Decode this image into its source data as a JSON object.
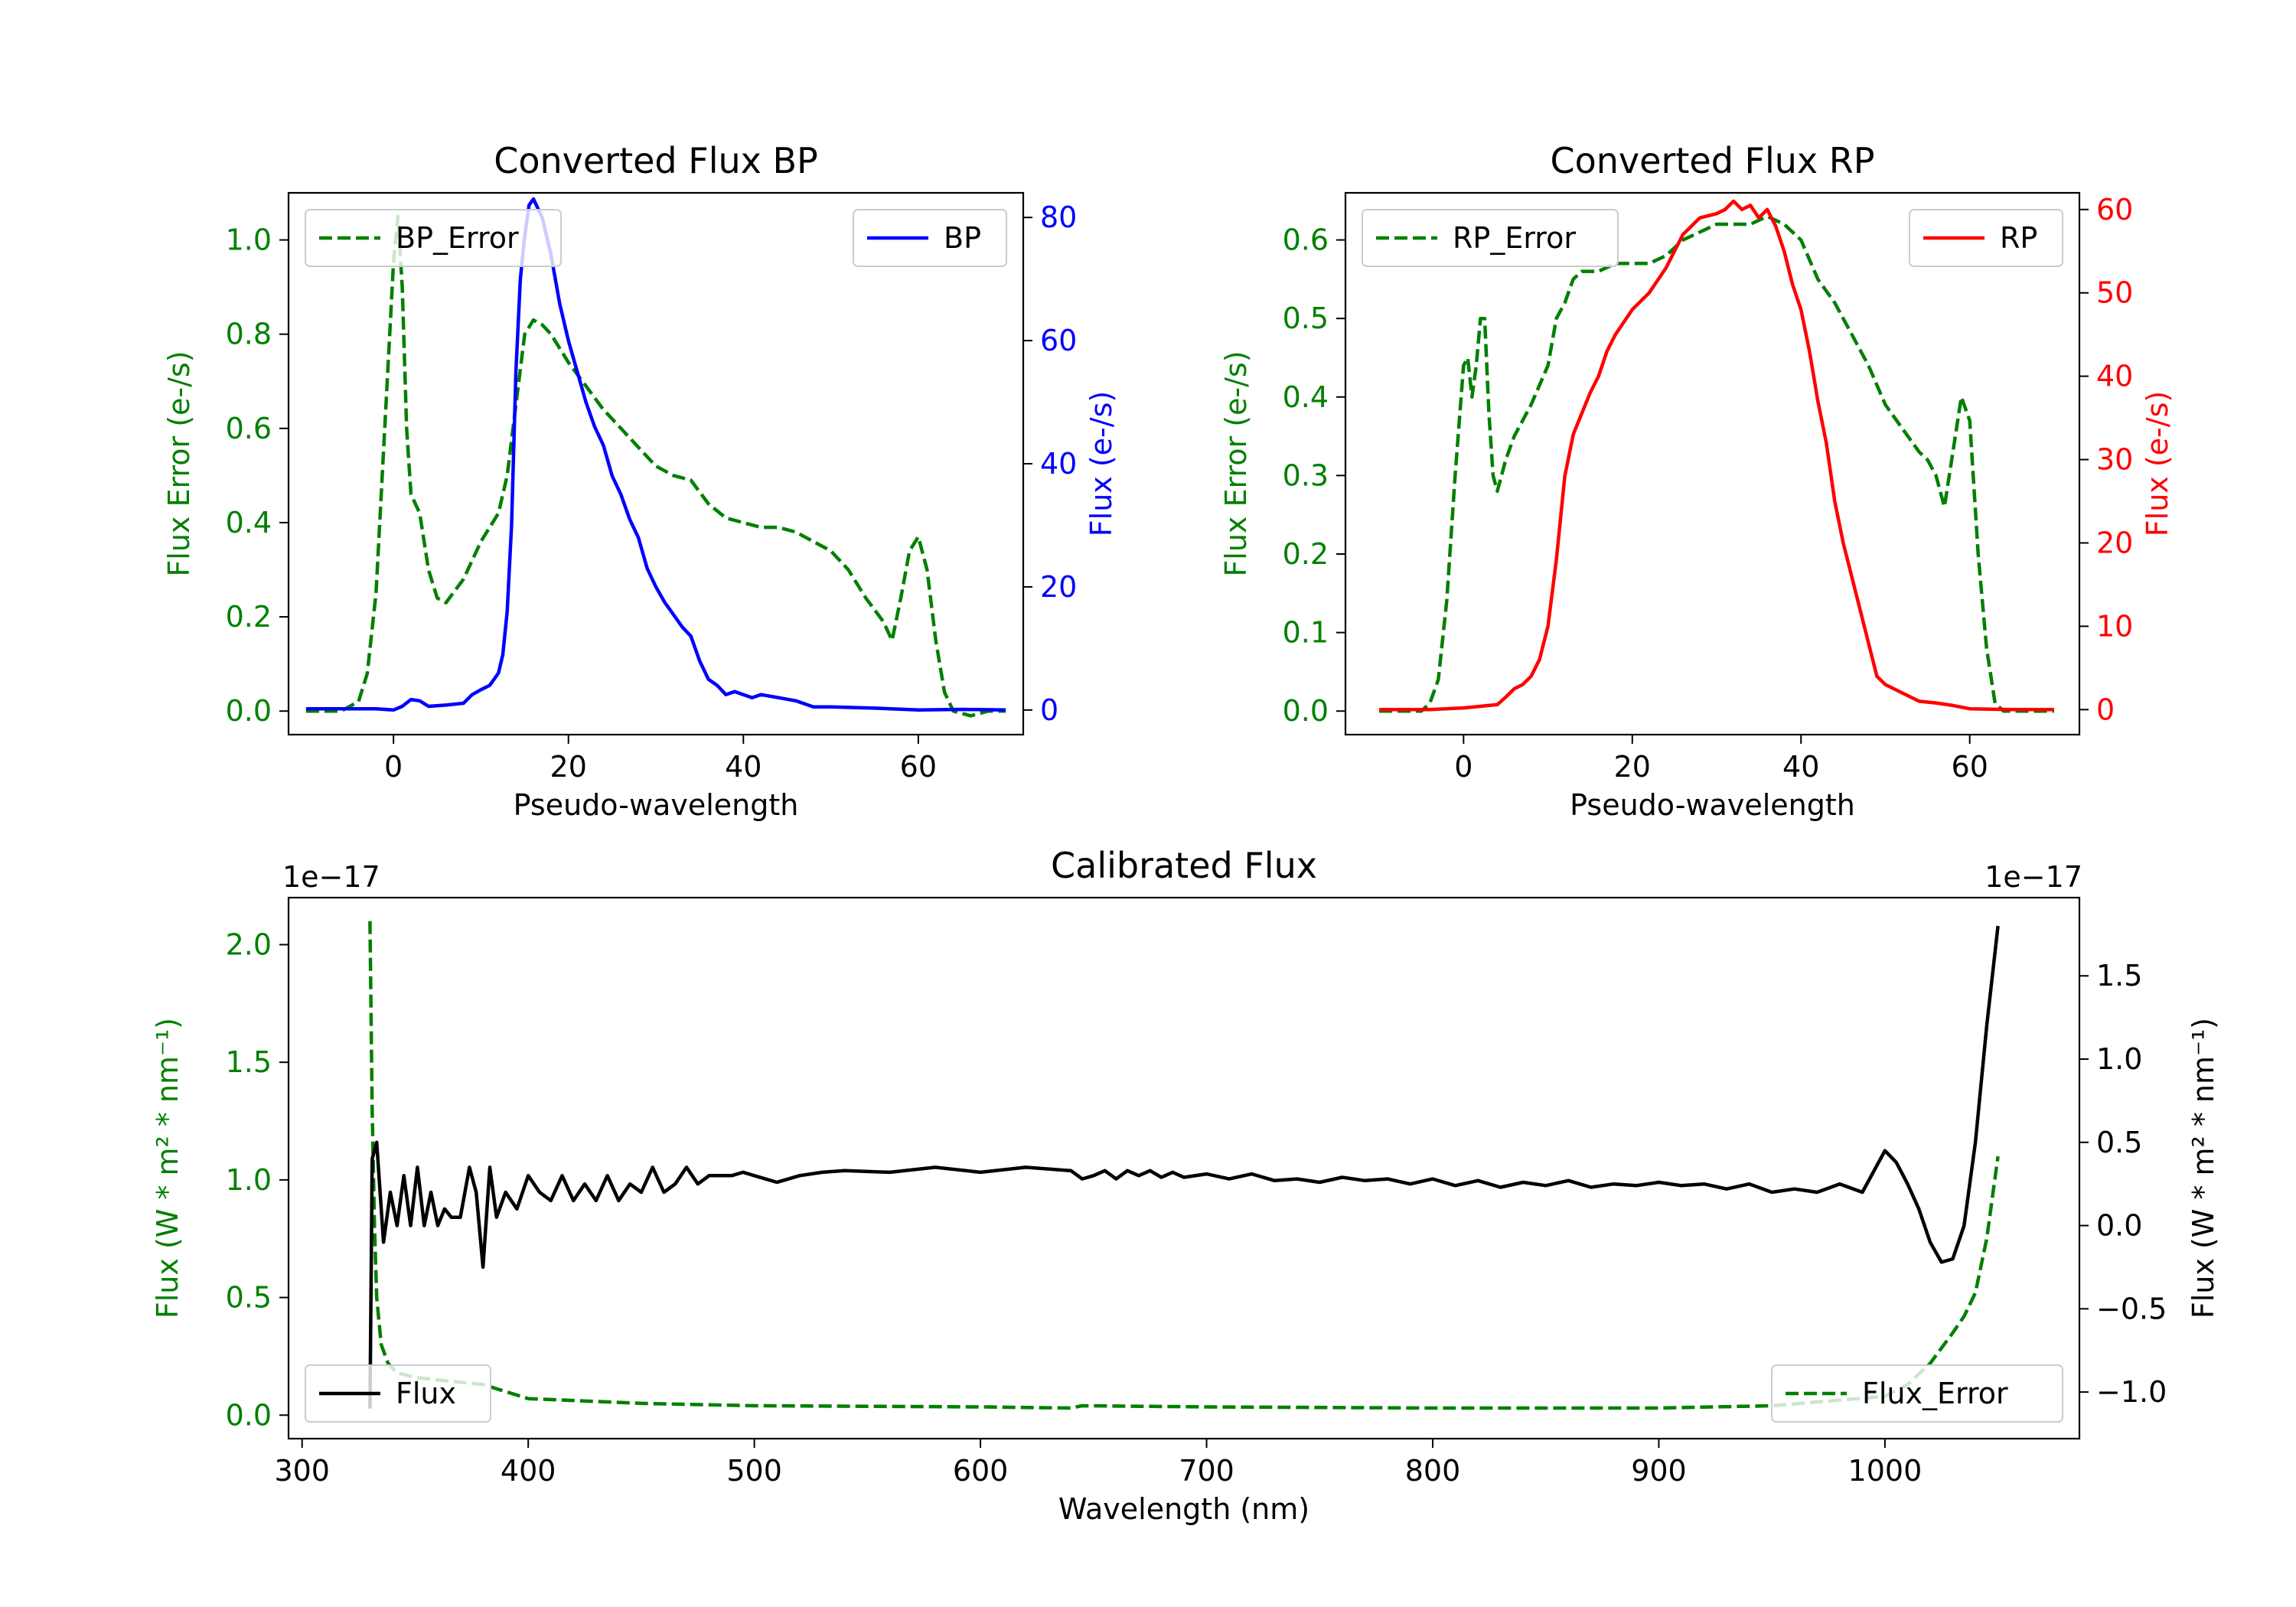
{
  "figure": {
    "background": "#ffffff"
  },
  "chart_data": [
    {
      "id": "bp",
      "type": "line",
      "title": "Converted Flux BP",
      "xlabel": "Pseudo-wavelength",
      "ylabel_left": "Flux Error (e-/s)",
      "ylabel_right": "Flux (e-/s)",
      "xlim": [
        -12,
        72
      ],
      "ylim_left": [
        -0.05,
        1.1
      ],
      "ylim_right": [
        -4,
        84
      ],
      "xticks": [
        0,
        20,
        40,
        60
      ],
      "yticks_left": [
        0.0,
        0.2,
        0.4,
        0.6,
        0.8,
        1.0
      ],
      "yticks_right": [
        0,
        20,
        40,
        60,
        80
      ],
      "left_color": "#008000",
      "right_color": "#0000ff",
      "legend_left": {
        "label": "BP_Error",
        "position": "upper left"
      },
      "legend_right": {
        "label": "BP",
        "position": "upper right"
      },
      "series": [
        {
          "name": "BP_Error",
          "axis": "left",
          "style": "dashed",
          "color": "#008000",
          "x": [
            -10,
            -6,
            -4,
            -3,
            -2,
            -1,
            0,
            0.5,
            1,
            1.5,
            2,
            3,
            4,
            5,
            6,
            8,
            10,
            12,
            13,
            14,
            15,
            16,
            17,
            18,
            20,
            22,
            24,
            26,
            28,
            30,
            32,
            34,
            36,
            38,
            40,
            42,
            44,
            46,
            48,
            50,
            52,
            54,
            56,
            57,
            58,
            59,
            60,
            61,
            62,
            63,
            64,
            66,
            68,
            70
          ],
          "values": [
            0.0,
            0.0,
            0.02,
            0.08,
            0.25,
            0.6,
            0.95,
            1.05,
            0.9,
            0.6,
            0.46,
            0.42,
            0.3,
            0.24,
            0.23,
            0.28,
            0.36,
            0.42,
            0.5,
            0.65,
            0.8,
            0.83,
            0.82,
            0.8,
            0.74,
            0.69,
            0.64,
            0.6,
            0.56,
            0.52,
            0.5,
            0.49,
            0.44,
            0.41,
            0.4,
            0.39,
            0.39,
            0.38,
            0.36,
            0.34,
            0.3,
            0.24,
            0.19,
            0.15,
            0.24,
            0.34,
            0.37,
            0.3,
            0.15,
            0.04,
            0.0,
            -0.01,
            0.0,
            0.0
          ]
        },
        {
          "name": "BP",
          "axis": "right",
          "style": "solid",
          "color": "#0000ff",
          "x": [
            -10,
            -4,
            -2,
            0,
            1,
            2,
            3,
            4,
            6,
            8,
            9,
            10,
            11,
            12,
            12.5,
            13,
            13.5,
            14,
            14.5,
            15,
            15.5,
            16,
            17,
            18,
            19,
            20,
            21,
            22,
            23,
            24,
            25,
            26,
            27,
            28,
            29,
            30,
            31,
            32,
            33,
            34,
            35,
            36,
            37,
            38,
            39,
            40,
            41,
            42,
            44,
            46,
            48,
            50,
            55,
            60,
            65,
            70
          ],
          "values": [
            0.2,
            0.2,
            0.2,
            0.0,
            0.6,
            1.7,
            1.5,
            0.6,
            0.8,
            1.1,
            2.5,
            3.3,
            4.0,
            6.0,
            9.0,
            16.0,
            30.0,
            55.0,
            70.0,
            77.0,
            82.0,
            83.0,
            80.0,
            74.0,
            66.0,
            60.0,
            55.0,
            50.0,
            46.0,
            43.0,
            38.0,
            35.0,
            31.0,
            28.0,
            23.0,
            20.0,
            17.5,
            15.5,
            13.5,
            12.0,
            8.0,
            5.0,
            4.0,
            2.5,
            3.0,
            2.5,
            2.0,
            2.5,
            2.0,
            1.5,
            0.5,
            0.5,
            0.3,
            0.0,
            0.1,
            0.0
          ]
        }
      ]
    },
    {
      "id": "rp",
      "type": "line",
      "title": "Converted Flux RP",
      "xlabel": "Pseudo-wavelength",
      "ylabel_left": "Flux Error (e-/s)",
      "ylabel_right": "Flux (e-/s)",
      "xlim": [
        -14,
        73
      ],
      "ylim_left": [
        -0.03,
        0.66
      ],
      "ylim_right": [
        -3,
        62
      ],
      "xticks": [
        0,
        20,
        40,
        60
      ],
      "yticks_left": [
        0.0,
        0.1,
        0.2,
        0.3,
        0.4,
        0.5,
        0.6
      ],
      "yticks_right": [
        0,
        10,
        20,
        30,
        40,
        50,
        60
      ],
      "left_color": "#008000",
      "right_color": "#ff0000",
      "legend_left": {
        "label": "RP_Error",
        "position": "upper left"
      },
      "legend_right": {
        "label": "RP",
        "position": "upper right"
      },
      "series": [
        {
          "name": "RP_Error",
          "axis": "left",
          "style": "dashed",
          "color": "#008000",
          "x": [
            -10,
            -5,
            -4,
            -3,
            -2,
            -1,
            0,
            0.5,
            1,
            1.5,
            2,
            2.5,
            3,
            3.5,
            4,
            5,
            6,
            7,
            8,
            10,
            11,
            12,
            13,
            14,
            16,
            18,
            20,
            22,
            24,
            26,
            28,
            30,
            32,
            34,
            36,
            38,
            40,
            42,
            44,
            46,
            48,
            50,
            52,
            54,
            55,
            56,
            57,
            58,
            59,
            60,
            61,
            62,
            63,
            64,
            66,
            70
          ],
          "values": [
            0.0,
            0.0,
            0.01,
            0.04,
            0.14,
            0.3,
            0.44,
            0.45,
            0.4,
            0.44,
            0.5,
            0.5,
            0.38,
            0.3,
            0.28,
            0.32,
            0.35,
            0.37,
            0.39,
            0.44,
            0.5,
            0.52,
            0.55,
            0.56,
            0.56,
            0.57,
            0.57,
            0.57,
            0.58,
            0.6,
            0.61,
            0.62,
            0.62,
            0.62,
            0.63,
            0.62,
            0.6,
            0.55,
            0.52,
            0.48,
            0.44,
            0.39,
            0.36,
            0.33,
            0.32,
            0.3,
            0.26,
            0.33,
            0.4,
            0.37,
            0.2,
            0.08,
            0.01,
            0.0,
            0.0,
            0.0
          ]
        },
        {
          "name": "RP",
          "axis": "right",
          "style": "solid",
          "color": "#ff0000",
          "x": [
            -10,
            -4,
            0,
            2,
            4,
            5,
            6,
            7,
            8,
            9,
            10,
            11,
            12,
            13,
            14,
            15,
            16,
            17,
            18,
            20,
            22,
            24,
            26,
            28,
            30,
            31,
            32,
            33,
            34,
            35,
            36,
            37,
            38,
            39,
            40,
            41,
            42,
            43,
            44,
            45,
            46,
            47,
            48,
            49,
            50,
            52,
            54,
            56,
            58,
            60,
            65,
            70
          ],
          "values": [
            0.0,
            0.0,
            0.2,
            0.4,
            0.6,
            1.5,
            2.5,
            3.0,
            4.0,
            6.0,
            10.0,
            18.0,
            28.0,
            33.0,
            35.5,
            38.0,
            40.0,
            43.0,
            45.0,
            48.0,
            50.0,
            53.0,
            57.0,
            59.0,
            59.5,
            60.0,
            61.0,
            60.0,
            60.5,
            59.0,
            60.0,
            58.0,
            55.0,
            51.0,
            48.0,
            43.0,
            37.0,
            32.0,
            25.0,
            20.0,
            16.0,
            12.0,
            8.0,
            4.0,
            3.0,
            2.0,
            1.0,
            0.8,
            0.5,
            0.1,
            0.0,
            0.0
          ]
        }
      ]
    },
    {
      "id": "cal",
      "type": "line",
      "title": "Calibrated Flux",
      "xlabel": "Wavelength (nm)",
      "ylabel_left": "Flux (W * m² * nm⁻¹)",
      "ylabel_right": "Flux (W * m² * nm⁻¹)",
      "offset_left": "1e−17",
      "offset_right": "1e−17",
      "xlim": [
        294,
        1086
      ],
      "ylim_left": [
        -0.1,
        2.2
      ],
      "ylim_right": [
        -1.28,
        1.97
      ],
      "xticks": [
        300,
        400,
        500,
        600,
        700,
        800,
        900,
        1000
      ],
      "yticks_left": [
        0.0,
        0.5,
        1.0,
        1.5,
        2.0
      ],
      "ytick_labels_left": [
        "0.0",
        "0.5",
        "1.0",
        "1.5",
        "2.0"
      ],
      "yticks_right": [
        -1.0,
        -0.5,
        0.0,
        0.5,
        1.0,
        1.5
      ],
      "ytick_labels_right": [
        "−1.0",
        "−0.5",
        "0.0",
        "0.5",
        "1.0",
        "1.5"
      ],
      "left_color": "#008000",
      "right_color": "#000000",
      "legend_left": {
        "label": "Flux",
        "position": "lower left"
      },
      "legend_right": {
        "label": "Flux_Error",
        "position": "lower right"
      },
      "series": [
        {
          "name": "Flux_Error",
          "axis": "left",
          "style": "dashed",
          "color": "#008000",
          "x": [
            330,
            331,
            332,
            333,
            335,
            338,
            342,
            350,
            360,
            370,
            380,
            390,
            400,
            450,
            500,
            600,
            640,
            645,
            700,
            800,
            900,
            950,
            1000,
            1010,
            1020,
            1030,
            1035,
            1040,
            1045,
            1050
          ],
          "values": [
            2.1,
            1.3,
            0.8,
            0.5,
            0.3,
            0.22,
            0.18,
            0.16,
            0.15,
            0.14,
            0.13,
            0.1,
            0.07,
            0.05,
            0.04,
            0.035,
            0.03,
            0.04,
            0.035,
            0.03,
            0.03,
            0.04,
            0.08,
            0.13,
            0.22,
            0.35,
            0.42,
            0.52,
            0.75,
            1.1
          ]
        },
        {
          "name": "Flux",
          "axis": "right",
          "style": "solid",
          "color": "#000000",
          "x": [
            330,
            331,
            333,
            336,
            339,
            342,
            345,
            348,
            351,
            354,
            357,
            360,
            363,
            366,
            370,
            374,
            377,
            380,
            383,
            386,
            390,
            395,
            400,
            405,
            410,
            415,
            420,
            425,
            430,
            435,
            440,
            445,
            450,
            455,
            460,
            465,
            470,
            475,
            480,
            485,
            490,
            495,
            500,
            510,
            520,
            530,
            540,
            560,
            580,
            600,
            620,
            640,
            645,
            650,
            655,
            660,
            665,
            670,
            675,
            680,
            685,
            690,
            700,
            710,
            720,
            730,
            740,
            750,
            760,
            770,
            780,
            790,
            800,
            810,
            820,
            830,
            840,
            850,
            860,
            870,
            880,
            890,
            900,
            910,
            920,
            930,
            940,
            950,
            960,
            970,
            980,
            990,
            1000,
            1005,
            1010,
            1015,
            1020,
            1025,
            1030,
            1035,
            1040,
            1045,
            1050
          ],
          "values": [
            -1.1,
            0.4,
            0.5,
            -0.1,
            0.2,
            0.0,
            0.3,
            0.0,
            0.35,
            0.0,
            0.2,
            0.0,
            0.1,
            0.05,
            0.05,
            0.35,
            0.2,
            -0.25,
            0.35,
            0.05,
            0.2,
            0.1,
            0.3,
            0.2,
            0.15,
            0.3,
            0.15,
            0.25,
            0.15,
            0.3,
            0.15,
            0.25,
            0.2,
            0.35,
            0.2,
            0.25,
            0.35,
            0.25,
            0.3,
            0.3,
            0.3,
            0.32,
            0.3,
            0.26,
            0.3,
            0.32,
            0.33,
            0.32,
            0.35,
            0.32,
            0.35,
            0.33,
            0.28,
            0.3,
            0.33,
            0.28,
            0.33,
            0.3,
            0.33,
            0.29,
            0.32,
            0.29,
            0.31,
            0.28,
            0.31,
            0.27,
            0.28,
            0.26,
            0.29,
            0.27,
            0.28,
            0.25,
            0.28,
            0.24,
            0.27,
            0.23,
            0.26,
            0.24,
            0.27,
            0.23,
            0.25,
            0.24,
            0.26,
            0.24,
            0.25,
            0.22,
            0.25,
            0.2,
            0.22,
            0.2,
            0.25,
            0.2,
            0.45,
            0.38,
            0.25,
            0.1,
            -0.1,
            -0.22,
            -0.2,
            0.0,
            0.5,
            1.2,
            1.8
          ]
        }
      ]
    }
  ]
}
